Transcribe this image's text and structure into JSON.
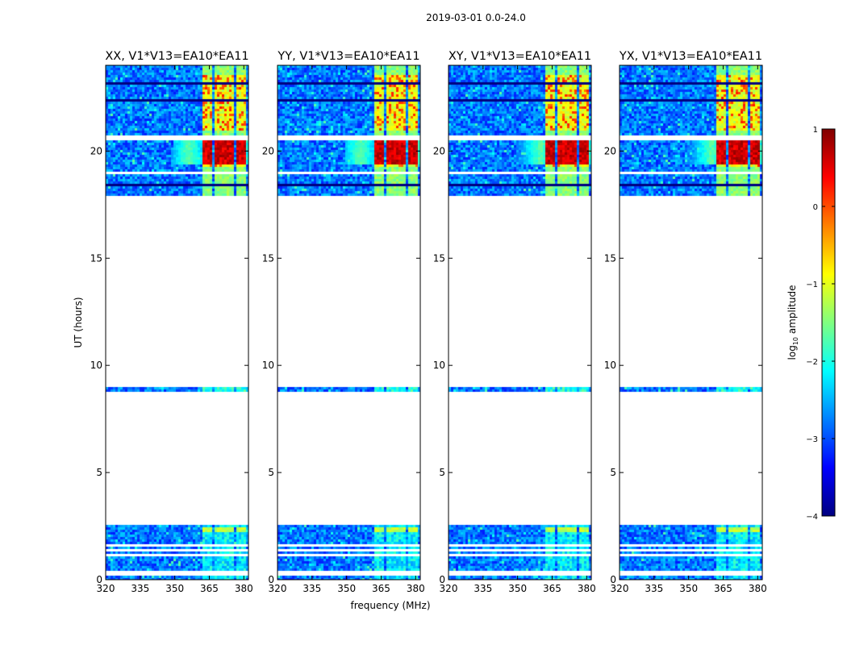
{
  "figure": {
    "suptitle": "2019-03-01 0.0-24.0",
    "shared_xlabel": "frequency (MHz)"
  },
  "chart_data": [
    {
      "type": "heatmap",
      "title": "XX, V1*V13=EA10*EA11",
      "xlabel": "",
      "ylabel": "UT (hours)",
      "xlim": [
        320,
        382
      ],
      "ylim": [
        0,
        24
      ],
      "xticks": [
        320,
        335,
        350,
        365,
        380
      ],
      "yticks": [
        0,
        5,
        10,
        15,
        20
      ],
      "variant": "parallel"
    },
    {
      "type": "heatmap",
      "title": "YY, V1*V13=EA10*EA11",
      "xlabel": "frequency (MHz)",
      "ylabel": "",
      "xlim": [
        320,
        382
      ],
      "ylim": [
        0,
        24
      ],
      "xticks": [
        320,
        335,
        350,
        365,
        380
      ],
      "yticks": [
        0,
        5,
        10,
        15,
        20
      ],
      "variant": "parallel"
    },
    {
      "type": "heatmap",
      "title": "XY, V1*V13=EA10*EA11",
      "xlabel": "",
      "ylabel": "",
      "xlim": [
        320,
        382
      ],
      "ylim": [
        0,
        24
      ],
      "xticks": [
        320,
        335,
        350,
        365,
        380
      ],
      "yticks": [
        0,
        5,
        10,
        15,
        20
      ],
      "variant": "cross"
    },
    {
      "type": "heatmap",
      "title": "YX, V1*V13=EA10*EA11",
      "xlabel": "",
      "ylabel": "",
      "xlim": [
        320,
        382
      ],
      "ylim": [
        0,
        24
      ],
      "xticks": [
        320,
        335,
        350,
        365,
        380
      ],
      "yticks": [
        0,
        5,
        10,
        15,
        20
      ],
      "variant": "cross"
    }
  ],
  "data_coverage": {
    "time_blocks_hours": [
      [
        0.0,
        2.55
      ],
      [
        8.75,
        9.0
      ],
      [
        17.95,
        24.0
      ]
    ],
    "flagged_gaps_hours": [
      [
        0.15,
        0.25
      ],
      [
        0.32,
        0.4
      ],
      [
        1.05,
        1.15
      ],
      [
        1.3,
        1.38
      ],
      [
        1.52,
        1.6
      ],
      [
        2.1,
        2.15
      ],
      [
        18.9,
        19.05
      ],
      [
        20.55,
        20.7
      ],
      [
        21.85,
        21.9
      ]
    ],
    "flagged_rows_hours": [
      [
        18.35,
        18.45
      ],
      [
        22.3,
        22.45
      ],
      [
        23.1,
        23.25
      ]
    ],
    "rfi_channels_mhz": [
      [
        362.5,
        366.5
      ],
      [
        367.5,
        371.0
      ],
      [
        372.0,
        375.5
      ],
      [
        376.5,
        380.5
      ]
    ],
    "rfi_bright_hours": [
      [
        19.3,
        20.7
      ],
      [
        21.0,
        23.5
      ],
      [
        2.2,
        2.5
      ]
    ],
    "broadband_feature_hours": [
      19.4,
      20.6
    ]
  },
  "colorbar": {
    "label_prefix": "log",
    "label_subscript": "10",
    "label_suffix": " amplitude",
    "min": -4,
    "max": 1,
    "ticks": [
      1,
      0,
      -1,
      -2,
      -3,
      -4
    ],
    "colormap": "jet",
    "jet_stops": [
      "#000080",
      "#0000ff",
      "#0080ff",
      "#00ffff",
      "#80ff80",
      "#ffff00",
      "#ff8000",
      "#ff0000",
      "#800000"
    ]
  }
}
